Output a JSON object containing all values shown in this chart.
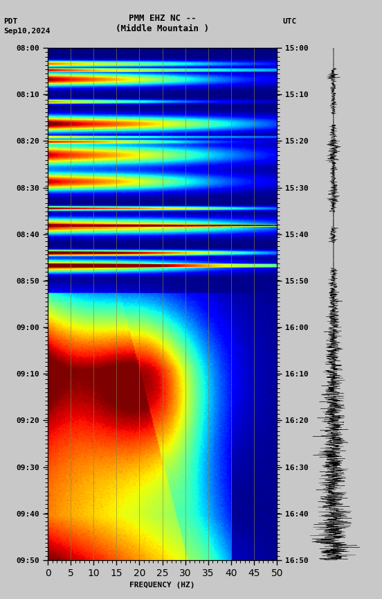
{
  "title_line1": "PMM EHZ NC --",
  "title_line2": "(Middle Mountain )",
  "label_left_top": "PDT",
  "label_left_date": "Sep10,2024",
  "label_right_top": "UTC",
  "xlabel": "FREQUENCY (HZ)",
  "freq_min": 0,
  "freq_max": 50,
  "freq_ticks": [
    0,
    5,
    10,
    15,
    20,
    25,
    30,
    35,
    40,
    45,
    50
  ],
  "pdt_labels": [
    "08:00",
    "08:10",
    "08:20",
    "08:30",
    "08:40",
    "08:50",
    "09:00",
    "09:10",
    "09:20",
    "09:30",
    "09:40",
    "09:50"
  ],
  "utc_labels": [
    "15:00",
    "15:10",
    "15:20",
    "15:30",
    "15:40",
    "15:50",
    "16:00",
    "16:10",
    "16:20",
    "16:30",
    "16:40",
    "16:50"
  ],
  "colormap": "jet",
  "fig_bg_color": "#c8c8c8",
  "vgrid_color": "#888844",
  "vgrid_alpha": 0.6,
  "vgrid_freqs": [
    5,
    10,
    15,
    20,
    25,
    30,
    35,
    40,
    45
  ],
  "waveform_color": "#000000",
  "tick_color": "#000000",
  "label_fontsize": 8,
  "title_fontsize": 9
}
